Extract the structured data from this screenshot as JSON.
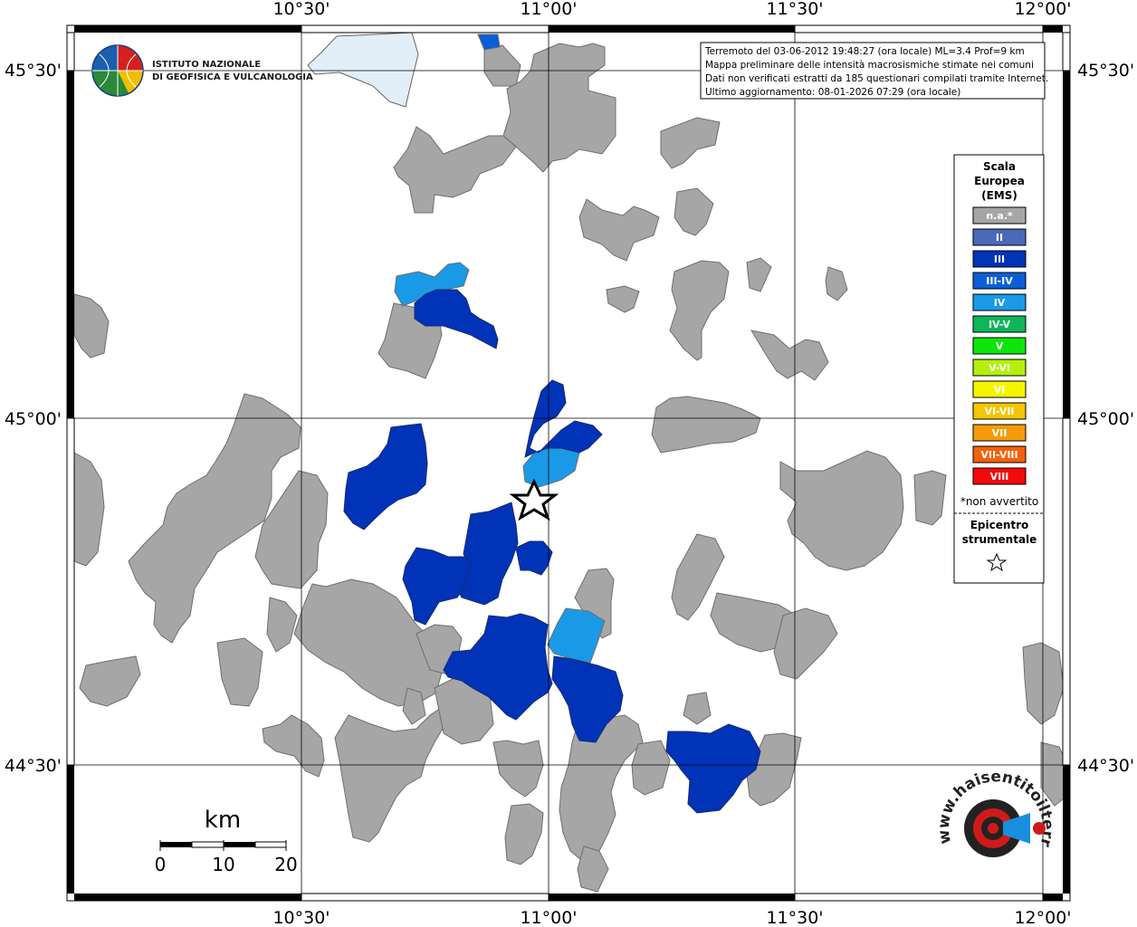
{
  "frame": {
    "top_labels": [
      "10°30'",
      "11°00'",
      "11°30'",
      "12°00'"
    ],
    "bottom_labels": [
      "10°30'",
      "11°00'",
      "11°30'",
      "12°00'"
    ],
    "left_labels": [
      "45°30'",
      "45°00'",
      "44°30'"
    ],
    "right_labels": [
      "45°30'",
      "45°00'",
      "44°30'"
    ]
  },
  "info_box": {
    "line1": "Terremoto del 03-06-2012 19:48:27 (ora locale) ML=3.4 Prof=9 km",
    "line2": "Mappa preliminare delle intensità macrosismiche stimate nei comuni",
    "line3": "Dati non verificati estratti da 185 questionari compilati tramite Internet.",
    "line4": "Ultimo aggiornamento: 08-01-2026 07:29 (ora locale)"
  },
  "logo": {
    "line1": "ISTITUTO NAZIONALE",
    "line2": "DI GEOFISICA E VULCANOLOGIA"
  },
  "legend": {
    "title_lines": [
      "Scala",
      "Europea",
      "(EMS)"
    ],
    "items": [
      {
        "label": "n.a.*",
        "color": "#a6a6a6"
      },
      {
        "label": "II",
        "color": "#4a69b8"
      },
      {
        "label": "III",
        "color": "#0033b8"
      },
      {
        "label": "III-IV",
        "color": "#0a5fd6"
      },
      {
        "label": "IV",
        "color": "#1a9ae6"
      },
      {
        "label": "IV-V",
        "color": "#0fb55a"
      },
      {
        "label": "V",
        "color": "#0ce60c"
      },
      {
        "label": "V-VI",
        "color": "#b3f00c"
      },
      {
        "label": "VI",
        "color": "#f5f500"
      },
      {
        "label": "VI-VII",
        "color": "#f5c500"
      },
      {
        "label": "VII",
        "color": "#f59a0a"
      },
      {
        "label": "VII-VIII",
        "color": "#f5600a"
      },
      {
        "label": "VIII",
        "color": "#f50a0a"
      }
    ],
    "footnote": "*non avvertito",
    "epicenter_lines": [
      "Epicentro",
      "strumentale"
    ]
  },
  "scale_bar": {
    "unit": "km",
    "ticks": [
      "0",
      "10",
      "20"
    ]
  },
  "brand": {
    "text": "www.haisentitoilterremoto.it"
  },
  "colors": {
    "na": "#a6a6a6",
    "III": "#0033b8",
    "III-IV": "#0a5fd6",
    "IV": "#1a9ae6",
    "lake": "#e2eef8"
  }
}
